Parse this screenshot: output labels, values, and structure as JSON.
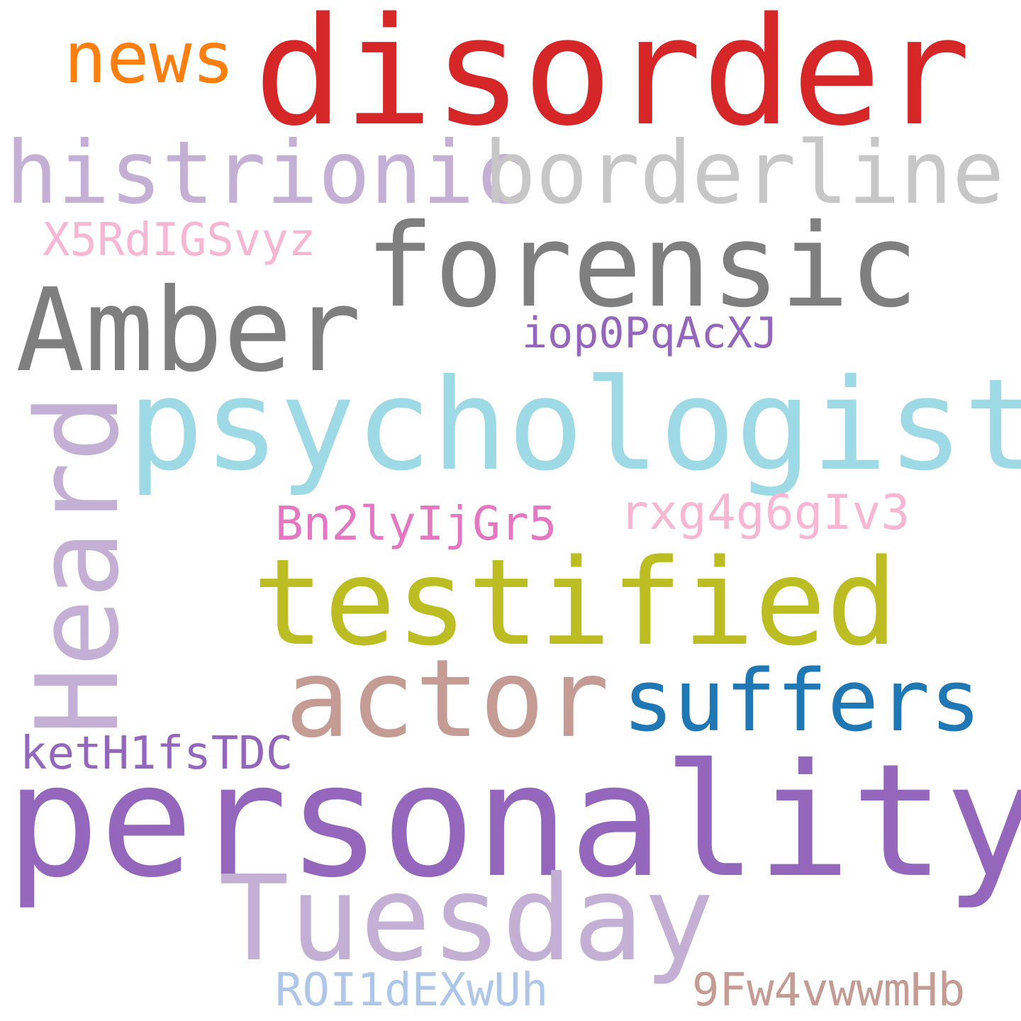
{
  "words": [
    {
      "id": "disorder",
      "text": "disorder",
      "color": "#d62728"
    },
    {
      "id": "news",
      "text": "news",
      "color": "#ff7f0e"
    },
    {
      "id": "histrionic",
      "text": "histrionic",
      "color": "#c5b0d5"
    },
    {
      "id": "borderline",
      "text": "borderline",
      "color": "#c7c7c7"
    },
    {
      "id": "x5rd",
      "text": "X5RdIGSvyz",
      "color": "#f7b6d2"
    },
    {
      "id": "forensic",
      "text": "forensic",
      "color": "#7f7f7f"
    },
    {
      "id": "amber",
      "text": "Amber",
      "color": "#7f7f7f"
    },
    {
      "id": "iop",
      "text": "iop0PqAcXJ",
      "color": "#9467bd"
    },
    {
      "id": "heard",
      "text": "Heard",
      "color": "#c5b0d5"
    },
    {
      "id": "psychologist",
      "text": "psychologist",
      "color": "#9edae5"
    },
    {
      "id": "rxg",
      "text": "rxg4g6gIv3",
      "color": "#f7b6d2"
    },
    {
      "id": "bn2",
      "text": "Bn2lyIjGr5",
      "color": "#e377c2"
    },
    {
      "id": "testified",
      "text": "testified",
      "color": "#bcbd22"
    },
    {
      "id": "actor",
      "text": "actor",
      "color": "#c49c94"
    },
    {
      "id": "suffers",
      "text": "suffers",
      "color": "#1f77b4"
    },
    {
      "id": "keth",
      "text": "ketH1fsTDC",
      "color": "#9467bd"
    },
    {
      "id": "personality",
      "text": "personality",
      "color": "#9467bd"
    },
    {
      "id": "tuesday",
      "text": "Tuesday",
      "color": "#c5b0d5"
    },
    {
      "id": "roi",
      "text": "ROI1dEXwUh",
      "color": "#aec7e8"
    },
    {
      "id": "nine",
      "text": "9Fw4vwwmHb",
      "color": "#c49c94"
    }
  ]
}
